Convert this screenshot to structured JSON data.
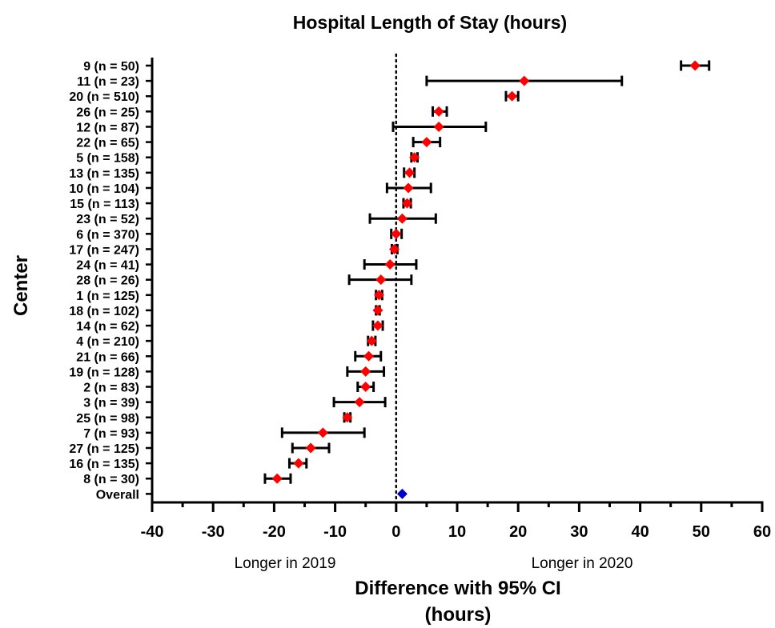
{
  "chart_data": {
    "type": "forest",
    "title": "Hospital Length of Stay (hours)",
    "ylabel": "Center",
    "xlabel_lines": [
      "Difference with 95% CI",
      "(hours)"
    ],
    "xlim": [
      -40,
      60
    ],
    "xticks": [
      -40,
      -30,
      -20,
      -10,
      0,
      10,
      20,
      30,
      40,
      50,
      60
    ],
    "xtick_labels": [
      "-40",
      "-30",
      "-20",
      "-10",
      "0",
      "10",
      "20",
      "30",
      "40",
      "50",
      "60"
    ],
    "reference_line": 0,
    "annotations": {
      "left": "Longer in 2019",
      "right": "Longer in 2020"
    },
    "colors": {
      "point": "#ff0000",
      "overall": "#0000cc",
      "line": "#000000"
    },
    "rows": [
      {
        "label": "9 (n = 50)",
        "estimate": 49,
        "lower": 46.7,
        "upper": 51.3
      },
      {
        "label": "11 (n = 23)",
        "estimate": 21,
        "lower": 5,
        "upper": 37
      },
      {
        "label": "20 (n = 510)",
        "estimate": 19,
        "lower": 18,
        "upper": 20
      },
      {
        "label": "26 (n = 25)",
        "estimate": 7,
        "lower": 6,
        "upper": 8.3
      },
      {
        "label": "12 (n = 87)",
        "estimate": 7,
        "lower": -0.5,
        "upper": 14.7
      },
      {
        "label": "22 (n = 65)",
        "estimate": 5,
        "lower": 2.8,
        "upper": 7.2
      },
      {
        "label": "5 (n = 158)",
        "estimate": 3,
        "lower": 2.5,
        "upper": 3.5
      },
      {
        "label": "13 (n = 135)",
        "estimate": 2.2,
        "lower": 1.3,
        "upper": 3
      },
      {
        "label": "10 (n = 104)",
        "estimate": 2,
        "lower": -1.5,
        "upper": 5.7
      },
      {
        "label": "15 (n = 113)",
        "estimate": 1.8,
        "lower": 1.2,
        "upper": 2.4
      },
      {
        "label": "23 (n = 52)",
        "estimate": 1,
        "lower": -4.3,
        "upper": 6.5
      },
      {
        "label": "6 (n = 370)",
        "estimate": 0,
        "lower": -0.8,
        "upper": 0.9
      },
      {
        "label": "17 (n = 247)",
        "estimate": -0.3,
        "lower": -0.7,
        "upper": 0.2
      },
      {
        "label": "24 (n = 41)",
        "estimate": -1,
        "lower": -5.2,
        "upper": 3.3
      },
      {
        "label": "28 (n = 26)",
        "estimate": -2.5,
        "lower": -7.7,
        "upper": 2.5
      },
      {
        "label": "1 (n = 125)",
        "estimate": -2.8,
        "lower": -3.3,
        "upper": -2.3
      },
      {
        "label": "18 (n = 102)",
        "estimate": -3,
        "lower": -3.3,
        "upper": -2.7
      },
      {
        "label": "14 (n = 62)",
        "estimate": -3,
        "lower": -3.8,
        "upper": -2.2
      },
      {
        "label": "4 (n = 210)",
        "estimate": -4,
        "lower": -4.6,
        "upper": -3.4
      },
      {
        "label": "21 (n = 66)",
        "estimate": -4.5,
        "lower": -6.7,
        "upper": -2.5
      },
      {
        "label": "19 (n = 128)",
        "estimate": -5,
        "lower": -8,
        "upper": -2
      },
      {
        "label": "2 (n = 83)",
        "estimate": -5,
        "lower": -6.3,
        "upper": -3.7
      },
      {
        "label": "3 (n = 39)",
        "estimate": -6,
        "lower": -10.2,
        "upper": -1.8
      },
      {
        "label": "25 (n = 98)",
        "estimate": -8,
        "lower": -8.5,
        "upper": -7.5
      },
      {
        "label": "7 (n = 93)",
        "estimate": -12,
        "lower": -18.7,
        "upper": -5.2
      },
      {
        "label": "27 (n = 125)",
        "estimate": -14,
        "lower": -17,
        "upper": -11
      },
      {
        "label": "16 (n = 135)",
        "estimate": -16,
        "lower": -17.5,
        "upper": -14.7
      },
      {
        "label": "8 (n = 30)",
        "estimate": -19.5,
        "lower": -21.5,
        "upper": -17.3
      },
      {
        "label": "Overall",
        "estimate": 1,
        "lower": 1,
        "upper": 1,
        "overall": true
      }
    ]
  }
}
